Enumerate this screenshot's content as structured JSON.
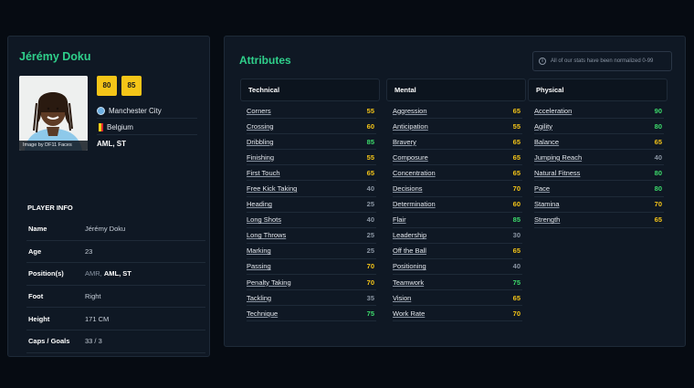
{
  "player": {
    "name": "Jérémy Doku",
    "photo_credit": "Image by DF11 Faces",
    "ratings": [
      "80",
      "85"
    ],
    "club": "Manchester City",
    "nation": "Belgium",
    "positions": "AML, ST"
  },
  "player_info": {
    "title": "PLAYER INFO",
    "rows": [
      {
        "label": "Name",
        "value": "Jérémy Doku"
      },
      {
        "label": "Age",
        "value": "23"
      },
      {
        "label": "Position(s)",
        "value_dim": "AMR, ",
        "value_bold": "AML, ST"
      },
      {
        "label": "Foot",
        "value": "Right"
      },
      {
        "label": "Height",
        "value": "171 CM"
      },
      {
        "label": "Caps / Goals",
        "value": "33 / 3"
      }
    ]
  },
  "attributes": {
    "title": "Attributes",
    "note": "All of our stats have been normalized 0-99",
    "colors": {
      "elite": "#3ddc6c",
      "good": "#f5c518",
      "average": "#8a95a3"
    },
    "columns": [
      {
        "heading": "Technical",
        "items": [
          {
            "name": "Corners",
            "value": 55
          },
          {
            "name": "Crossing",
            "value": 60
          },
          {
            "name": "Dribbling",
            "value": 85
          },
          {
            "name": "Finishing",
            "value": 55
          },
          {
            "name": "First Touch",
            "value": 65
          },
          {
            "name": "Free Kick Taking",
            "value": 40
          },
          {
            "name": "Heading",
            "value": 25
          },
          {
            "name": "Long Shots",
            "value": 40
          },
          {
            "name": "Long Throws",
            "value": 25
          },
          {
            "name": "Marking",
            "value": 25
          },
          {
            "name": "Passing",
            "value": 70
          },
          {
            "name": "Penalty Taking",
            "value": 70
          },
          {
            "name": "Tackling",
            "value": 35
          },
          {
            "name": "Technique",
            "value": 75
          }
        ]
      },
      {
        "heading": "Mental",
        "items": [
          {
            "name": "Aggression",
            "value": 65
          },
          {
            "name": "Anticipation",
            "value": 55
          },
          {
            "name": "Bravery",
            "value": 65
          },
          {
            "name": "Composure",
            "value": 65
          },
          {
            "name": "Concentration",
            "value": 65
          },
          {
            "name": "Decisions",
            "value": 70
          },
          {
            "name": "Determination",
            "value": 60
          },
          {
            "name": "Flair",
            "value": 85
          },
          {
            "name": "Leadership",
            "value": 30
          },
          {
            "name": "Off the Ball",
            "value": 65
          },
          {
            "name": "Positioning",
            "value": 40
          },
          {
            "name": "Teamwork",
            "value": 75
          },
          {
            "name": "Vision",
            "value": 65
          },
          {
            "name": "Work Rate",
            "value": 70
          }
        ]
      },
      {
        "heading": "Physical",
        "items": [
          {
            "name": "Acceleration",
            "value": 90
          },
          {
            "name": "Agility",
            "value": 80
          },
          {
            "name": "Balance",
            "value": 65
          },
          {
            "name": "Jumping Reach",
            "value": 40
          },
          {
            "name": "Natural Fitness",
            "value": 80
          },
          {
            "name": "Pace",
            "value": 80
          },
          {
            "name": "Stamina",
            "value": 70
          },
          {
            "name": "Strength",
            "value": 65
          }
        ]
      }
    ]
  }
}
